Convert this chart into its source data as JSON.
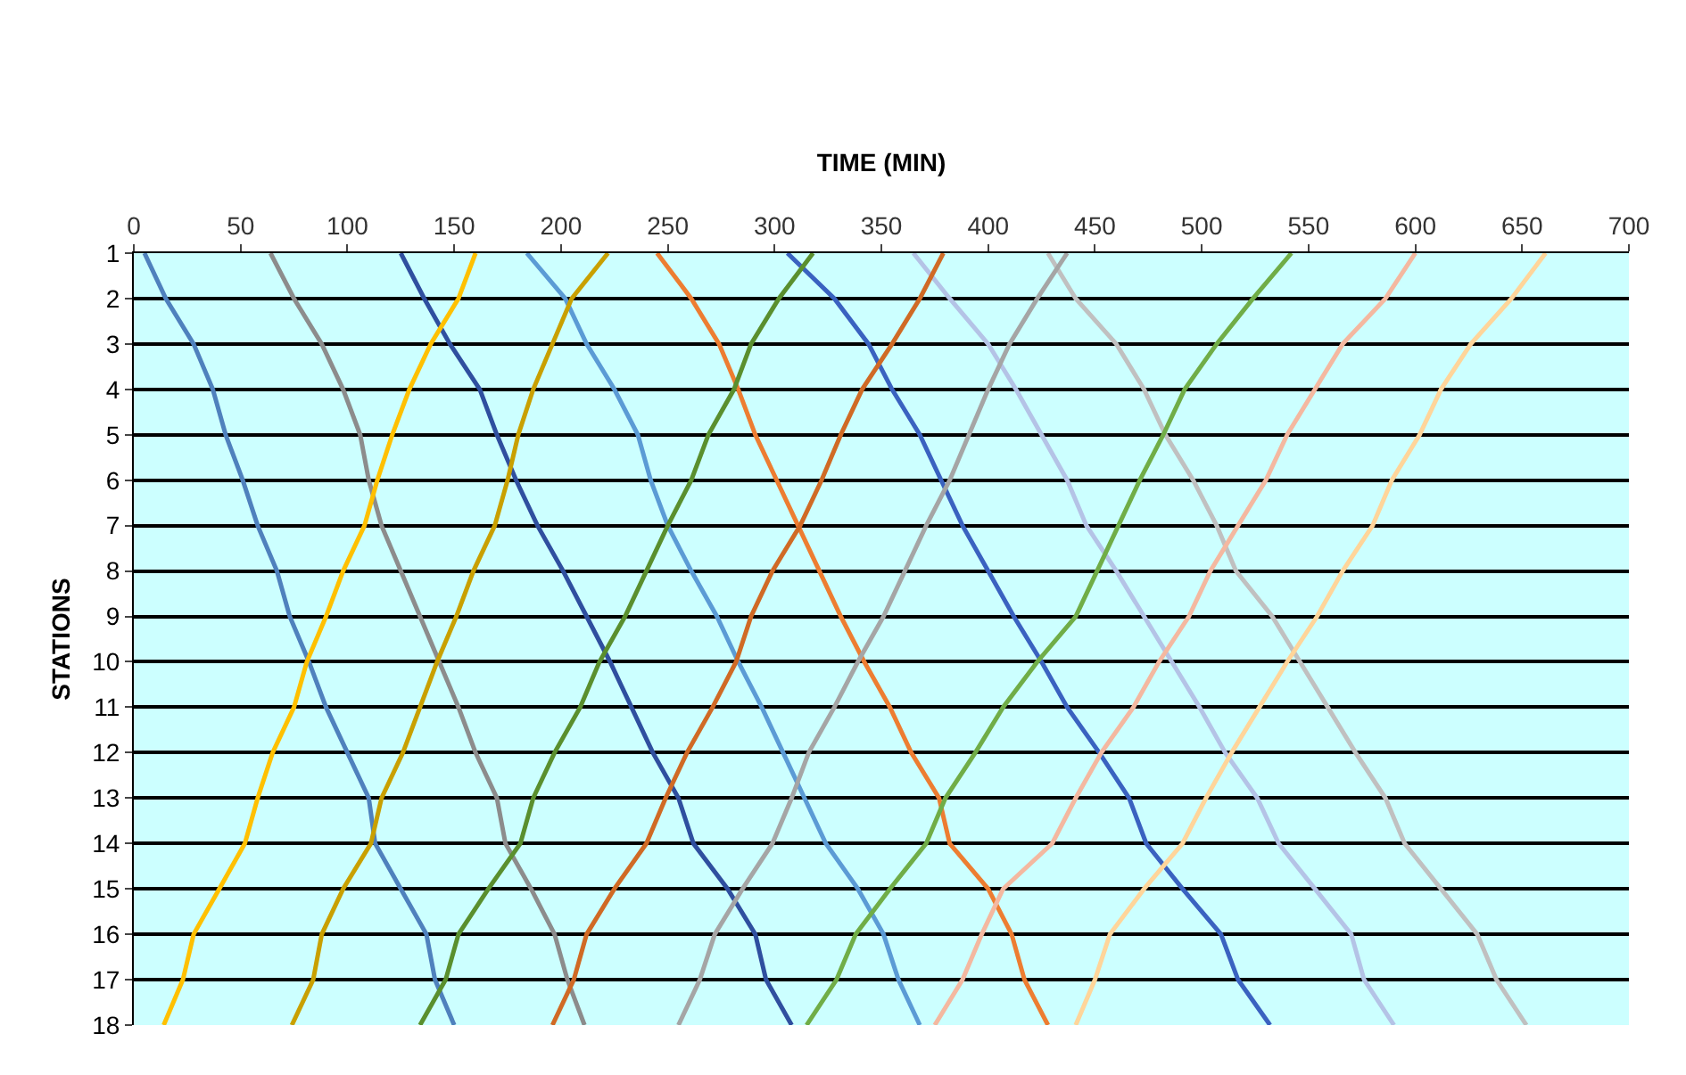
{
  "chart_data": {
    "type": "line",
    "xlabel": "TIME (MIN)",
    "ylabel": "STATIONS",
    "xlim": [
      0,
      700
    ],
    "xticks": [
      0,
      50,
      100,
      150,
      200,
      250,
      300,
      350,
      400,
      450,
      500,
      550,
      600,
      650,
      700
    ],
    "ylim": [
      18,
      1
    ],
    "yticks": [
      1,
      2,
      3,
      4,
      5,
      6,
      7,
      8,
      9,
      10,
      11,
      12,
      13,
      14,
      15,
      16,
      17,
      18
    ],
    "grid": "y",
    "marker": "none",
    "line_style": "solid",
    "series": [
      {
        "color": "#4f81bd",
        "x": [
          5,
          15,
          28,
          37,
          43,
          51,
          58,
          67,
          73,
          82,
          90,
          100,
          110,
          113,
          125,
          137,
          141,
          150
        ],
        "values": [
          1,
          2,
          3,
          4,
          5,
          6,
          7,
          8,
          9,
          10,
          11,
          12,
          13,
          14,
          15,
          16,
          17,
          18
        ]
      },
      {
        "color": "#8c8c8c",
        "x": [
          64,
          75,
          88,
          98,
          106,
          110,
          116,
          125,
          134,
          143,
          152,
          160,
          170,
          174,
          186,
          197,
          203,
          211
        ],
        "values": [
          1,
          2,
          3,
          4,
          5,
          6,
          7,
          8,
          9,
          10,
          11,
          12,
          13,
          14,
          15,
          16,
          17,
          18
        ]
      },
      {
        "color": "#2f4f9f",
        "x": [
          125,
          136,
          148,
          162,
          170,
          179,
          189,
          201,
          212,
          223,
          233,
          243,
          255,
          262,
          278,
          291,
          296,
          308
        ],
        "values": [
          1,
          2,
          3,
          4,
          5,
          6,
          7,
          8,
          9,
          10,
          11,
          12,
          13,
          14,
          15,
          16,
          17,
          18
        ]
      },
      {
        "color": "#5b9bd5",
        "x": [
          184,
          202,
          212,
          225,
          236,
          242,
          250,
          261,
          273,
          283,
          294,
          304,
          314,
          324,
          339,
          351,
          358,
          368
        ],
        "values": [
          1,
          2,
          3,
          4,
          5,
          6,
          7,
          8,
          9,
          10,
          11,
          12,
          13,
          14,
          15,
          16,
          17,
          18
        ]
      },
      {
        "color": "#ed7d31",
        "x": [
          245,
          261,
          274,
          283,
          291,
          301,
          311,
          321,
          331,
          342,
          354,
          364,
          377,
          382,
          400,
          411,
          417,
          428
        ],
        "values": [
          1,
          2,
          3,
          4,
          5,
          6,
          7,
          8,
          9,
          10,
          11,
          12,
          13,
          14,
          15,
          16,
          17,
          18
        ]
      },
      {
        "color": "#3a62c0",
        "x": [
          306,
          328,
          344,
          355,
          368,
          378,
          388,
          400,
          412,
          425,
          437,
          452,
          466,
          474,
          491,
          509,
          517,
          532
        ],
        "values": [
          1,
          2,
          3,
          4,
          5,
          6,
          7,
          8,
          9,
          10,
          11,
          12,
          13,
          14,
          15,
          16,
          17,
          18
        ]
      },
      {
        "color": "#b4c3e6",
        "x": [
          365,
          382,
          400,
          413,
          425,
          437,
          446,
          460,
          473,
          486,
          499,
          511,
          526,
          536,
          553,
          570,
          576,
          590
        ],
        "values": [
          1,
          2,
          3,
          4,
          5,
          6,
          7,
          8,
          9,
          10,
          11,
          12,
          13,
          14,
          15,
          16,
          17,
          18
        ]
      },
      {
        "color": "#c0c0c0",
        "x": [
          428,
          441,
          460,
          473,
          483,
          496,
          507,
          516,
          533,
          546,
          559,
          572,
          586,
          595,
          612,
          629,
          638,
          652
        ],
        "values": [
          1,
          2,
          3,
          4,
          5,
          6,
          7,
          8,
          9,
          10,
          11,
          12,
          13,
          14,
          15,
          16,
          17,
          18
        ]
      },
      {
        "color": "#ffc000",
        "x": [
          160,
          152,
          139,
          129,
          121,
          114,
          108,
          98,
          90,
          81,
          75,
          65,
          58,
          52,
          40,
          28,
          23,
          14
        ],
        "values": [
          1,
          2,
          3,
          4,
          5,
          6,
          7,
          8,
          9,
          10,
          11,
          12,
          13,
          14,
          15,
          16,
          17,
          18
        ]
      },
      {
        "color": "#c9a000",
        "x": [
          222,
          205,
          196,
          187,
          180,
          175,
          169,
          159,
          151,
          142,
          134,
          126,
          116,
          111,
          98,
          88,
          84,
          74
        ],
        "values": [
          1,
          2,
          3,
          4,
          5,
          6,
          7,
          8,
          9,
          10,
          11,
          12,
          13,
          14,
          15,
          16,
          17,
          18
        ]
      },
      {
        "color": "#5a8f2e",
        "x": [
          318,
          302,
          289,
          281,
          269,
          261,
          250,
          240,
          230,
          218,
          209,
          197,
          187,
          181,
          166,
          152,
          146,
          134
        ],
        "values": [
          1,
          2,
          3,
          4,
          5,
          6,
          7,
          8,
          9,
          10,
          11,
          12,
          13,
          14,
          15,
          16,
          17,
          18
        ]
      },
      {
        "color": "#d06a25",
        "x": [
          379,
          368,
          355,
          341,
          331,
          322,
          312,
          299,
          289,
          282,
          271,
          259,
          249,
          240,
          225,
          212,
          206,
          196
        ],
        "values": [
          1,
          2,
          3,
          4,
          5,
          6,
          7,
          8,
          9,
          10,
          11,
          12,
          13,
          14,
          15,
          16,
          17,
          18
        ]
      },
      {
        "color": "#a5a5a5",
        "x": [
          437,
          423,
          410,
          400,
          391,
          382,
          371,
          361,
          351,
          339,
          328,
          316,
          308,
          299,
          285,
          272,
          265,
          255
        ],
        "values": [
          1,
          2,
          3,
          4,
          5,
          6,
          7,
          8,
          9,
          10,
          11,
          12,
          13,
          14,
          15,
          16,
          17,
          18
        ]
      },
      {
        "color": "#70ad47",
        "x": [
          542,
          524,
          507,
          492,
          482,
          471,
          461,
          451,
          441,
          423,
          407,
          394,
          380,
          371,
          354,
          338,
          329,
          315
        ],
        "values": [
          1,
          2,
          3,
          4,
          5,
          6,
          7,
          8,
          9,
          10,
          11,
          12,
          13,
          14,
          15,
          16,
          17,
          18
        ]
      },
      {
        "color": "#f4b8a0",
        "x": [
          600,
          586,
          566,
          553,
          540,
          530,
          517,
          504,
          494,
          480,
          468,
          453,
          441,
          430,
          407,
          397,
          388,
          375
        ],
        "values": [
          1,
          2,
          3,
          4,
          5,
          6,
          7,
          8,
          9,
          10,
          11,
          12,
          13,
          14,
          15,
          16,
          17,
          18
        ]
      },
      {
        "color": "#ffd59a",
        "x": [
          661,
          645,
          626,
          612,
          602,
          589,
          580,
          566,
          554,
          540,
          527,
          514,
          502,
          491,
          473,
          457,
          450,
          441
        ],
        "values": [
          1,
          2,
          3,
          4,
          5,
          6,
          7,
          8,
          9,
          10,
          11,
          12,
          13,
          14,
          15,
          16,
          17,
          18
        ]
      }
    ]
  }
}
